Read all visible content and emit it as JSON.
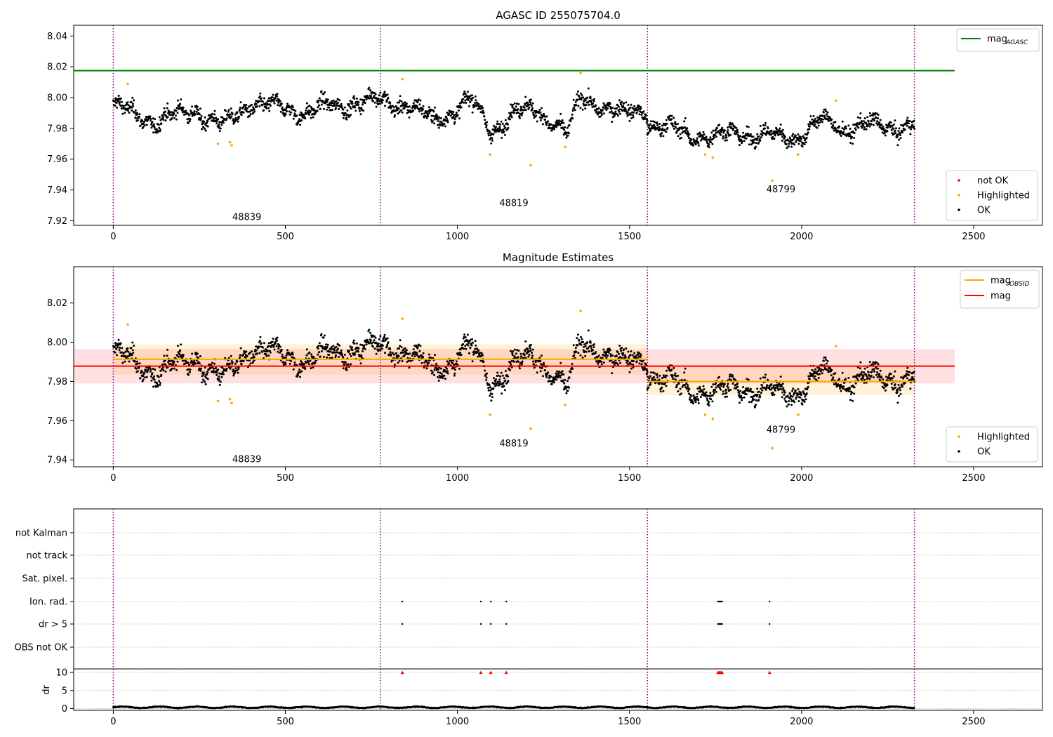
{
  "chart_data": [
    {
      "type": "scatter",
      "title": "AGASC ID 255075704.0",
      "xlim": [
        -115,
        2700
      ],
      "ylim": [
        7.917,
        8.047
      ],
      "x_ticks": [
        0,
        500,
        1000,
        1500,
        2000,
        2500
      ],
      "y_ticks": [
        7.92,
        7.94,
        7.96,
        7.98,
        8.0,
        8.02,
        8.04
      ],
      "y_tick_labels": [
        "7.92",
        "7.94",
        "7.96",
        "7.98",
        "8.00",
        "8.02",
        "8.04"
      ],
      "grid": false,
      "vlines": [
        0,
        776,
        1552,
        2328
      ],
      "obsid_labels": [
        {
          "text": "48839",
          "x": 388,
          "y": 7.9225
        },
        {
          "text": "48819",
          "x": 1164,
          "y": 7.9315
        },
        {
          "text": "48799",
          "x": 1940,
          "y": 7.9405
        }
      ],
      "ok_segments": [
        {
          "x": [
            0,
            60,
            120,
            180,
            240,
            320,
            400,
            480,
            560,
            640,
            700,
            776
          ],
          "y": [
            7.995,
            7.989,
            7.985,
            7.988,
            7.992,
            7.981,
            7.997,
            7.993,
            7.991,
            7.994,
            7.997,
            7.998
          ]
        },
        {
          "x": [
            776,
            850,
            930,
            980,
            1040,
            1100,
            1160,
            1230,
            1290,
            1320,
            1360,
            1420,
            1480,
            1552
          ],
          "y": [
            7.997,
            7.996,
            7.985,
            7.991,
            7.998,
            7.978,
            7.99,
            7.992,
            7.983,
            7.976,
            8.0,
            7.995,
            7.989,
            7.993
          ]
        },
        {
          "x": [
            1552,
            1610,
            1680,
            1750,
            1820,
            1880,
            1940,
            2000,
            2060,
            2120,
            2180,
            2240,
            2328
          ],
          "y": [
            7.983,
            7.98,
            7.976,
            7.974,
            7.978,
            7.975,
            7.974,
            7.976,
            7.985,
            7.98,
            7.982,
            7.981,
            7.982
          ]
        }
      ],
      "ok_scatter": 0.006,
      "highlighted": [
        {
          "x": 42,
          "y": 8.009
        },
        {
          "x": 304,
          "y": 7.97
        },
        {
          "x": 339,
          "y": 7.971
        },
        {
          "x": 344,
          "y": 7.969
        },
        {
          "x": 840,
          "y": 8.012
        },
        {
          "x": 1095,
          "y": 7.963
        },
        {
          "x": 1213,
          "y": 7.956
        },
        {
          "x": 1313,
          "y": 7.968
        },
        {
          "x": 1358,
          "y": 8.016
        },
        {
          "x": 1720,
          "y": 7.963
        },
        {
          "x": 1742,
          "y": 7.961
        },
        {
          "x": 1915,
          "y": 7.946
        },
        {
          "x": 1990,
          "y": 7.963
        },
        {
          "x": 2100,
          "y": 7.998
        }
      ],
      "lines": [
        {
          "name": "mag_AGASC",
          "x": [
            -115,
            2445
          ],
          "y": [
            8.0175,
            8.0175
          ],
          "color": "#008000"
        }
      ],
      "legend_top": {
        "location": "top-right",
        "entries": [
          {
            "label": "mag",
            "subscript": "AGASC",
            "color": "#008000",
            "kind": "line"
          }
        ]
      },
      "legend_bottom": {
        "location": "lower-right",
        "entries": [
          {
            "label": "not OK",
            "color": "#ff0000",
            "kind": "dot"
          },
          {
            "label": "Highlighted",
            "color": "#ffa500",
            "kind": "dot"
          },
          {
            "label": "OK",
            "color": "#000000",
            "kind": "dot"
          }
        ]
      }
    },
    {
      "type": "scatter",
      "title": "Magnitude Estimates",
      "xlim": [
        -115,
        2700
      ],
      "ylim": [
        7.9365,
        8.0385
      ],
      "x_ticks": [
        0,
        500,
        1000,
        1500,
        2000,
        2500
      ],
      "y_ticks": [
        7.94,
        7.96,
        7.98,
        8.0,
        8.02
      ],
      "y_tick_labels": [
        "7.94",
        "7.96",
        "7.98",
        "8.00",
        "8.02"
      ],
      "grid": false,
      "vlines": [
        0,
        776,
        1552,
        2328
      ],
      "obsid_labels": [
        {
          "text": "48839",
          "x": 388,
          "y": 7.9405
        },
        {
          "text": "48819",
          "x": 1164,
          "y": 7.9485
        },
        {
          "text": "48799",
          "x": 1940,
          "y": 7.9555
        }
      ],
      "bands": [
        {
          "x0": -115,
          "x1": 2445,
          "y0": 7.979,
          "y1": 7.9965,
          "color": "#ff0000",
          "opacity": 0.12
        },
        {
          "x0": 0,
          "x1": 1552,
          "y0": 7.9835,
          "y1": 7.999,
          "color": "#ffa500",
          "opacity": 0.15
        },
        {
          "x0": 1552,
          "x1": 2328,
          "y0": 7.973,
          "y1": 7.9875,
          "color": "#ffa500",
          "opacity": 0.15
        }
      ],
      "lines": [
        {
          "name": "mag_OBSID",
          "x": [
            0,
            1552
          ],
          "y": [
            7.9913,
            7.9913
          ],
          "color": "#ffa500"
        },
        {
          "name": "mag_OBSID",
          "x": [
            1552,
            2328
          ],
          "y": [
            7.98,
            7.98
          ],
          "color": "#ffa500"
        },
        {
          "name": "mag",
          "x": [
            -115,
            2445
          ],
          "y": [
            7.9878,
            7.9878
          ],
          "color": "#ff0000"
        }
      ],
      "legend_top": {
        "location": "top-right",
        "entries": [
          {
            "label": "mag",
            "subscript": "OBSID",
            "color": "#ffa500",
            "kind": "line"
          },
          {
            "label": "mag",
            "subscript": "",
            "color": "#ff0000",
            "kind": "line"
          }
        ]
      },
      "legend_bottom": {
        "location": "lower-right",
        "entries": [
          {
            "label": "Highlighted",
            "color": "#ffa500",
            "kind": "dot"
          },
          {
            "label": "OK",
            "color": "#000000",
            "kind": "dot"
          }
        ]
      }
    },
    {
      "type": "scatter",
      "xlim": [
        -115,
        2700
      ],
      "x_ticks": [
        0,
        500,
        1000,
        1500,
        2000,
        2500
      ],
      "vlines": [
        0,
        776,
        1552,
        2328
      ],
      "flag_rows": [
        "not Kalman",
        "not track",
        "Sat. pixel.",
        "Ion. rad.",
        "dr > 5",
        "OBS not OK"
      ],
      "flag_points": {
        "Ion. rad.": [
          840,
          1068,
          1097,
          1142,
          1757,
          1760,
          1763,
          1766,
          1769,
          1907
        ],
        "dr > 5": [
          840,
          1068,
          1097,
          1142,
          1757,
          1760,
          1763,
          1766,
          1769,
          1907
        ]
      },
      "dr_ylabel": "dr",
      "dr_ylim": [
        -0.5,
        11
      ],
      "dr_ticks": [
        0,
        5,
        10
      ],
      "dr_clipped": [
        840,
        1068,
        1097,
        1142,
        1757,
        1760,
        1763,
        1766,
        1769,
        1907
      ],
      "dr_clip_value": 10,
      "dr_typical": 0.35
    }
  ]
}
